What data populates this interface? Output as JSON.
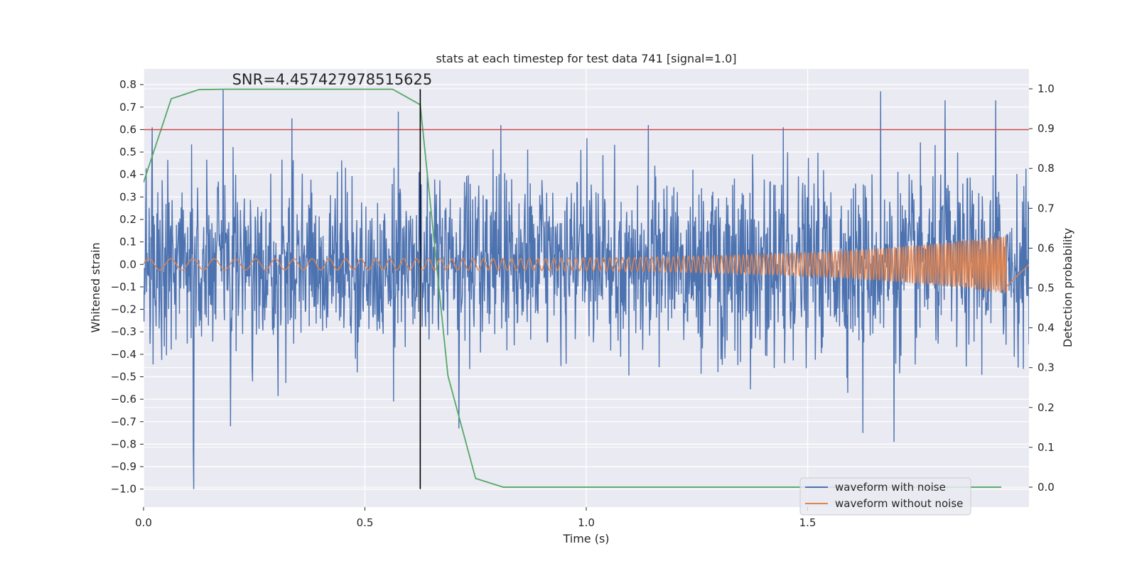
{
  "chart_data": {
    "type": "line",
    "title": "stats at each timestep for test data 741 [signal=1.0]",
    "xlabel": "Time (s)",
    "ylabel": "Whitened strain",
    "y2label": "Detection probability",
    "xlim": [
      0.0,
      2.0
    ],
    "ylim": [
      -1.08,
      0.87
    ],
    "y2lim": [
      -0.05,
      1.05
    ],
    "x_ticks": [
      0.0,
      0.5,
      1.0,
      1.5
    ],
    "x_tick_labels": [
      "0.0",
      "0.5",
      "1.0",
      "1.5"
    ],
    "y_ticks": [
      0.8,
      0.7,
      0.6,
      0.5,
      0.4,
      0.3,
      0.2,
      0.1,
      0.0,
      -0.1,
      -0.2,
      -0.3,
      -0.4,
      -0.5,
      -0.6,
      -0.7,
      -0.8,
      -0.9,
      -1.0
    ],
    "y_tick_labels": [
      "0.8",
      "0.7",
      "0.6",
      "0.5",
      "0.4",
      "0.3",
      "0.2",
      "0.1",
      "0.0",
      "−0.1",
      "−0.2",
      "−0.3",
      "−0.4",
      "−0.5",
      "−0.6",
      "−0.7",
      "−0.8",
      "−0.9",
      "−1.0"
    ],
    "y2_ticks": [
      1.0,
      0.9,
      0.8,
      0.7,
      0.6,
      0.5,
      0.4,
      0.3,
      0.2,
      0.1,
      0.0
    ],
    "y2_tick_labels": [
      "1.0",
      "0.9",
      "0.8",
      "0.7",
      "0.6",
      "0.5",
      "0.4",
      "0.3",
      "0.2",
      "0.1",
      "0.0"
    ],
    "grid": true,
    "legend_position": "lower-right",
    "annotation": "SNR=4.457427978515625",
    "annotation_anchor": [
      0.2,
      0.8
    ],
    "threshold_y": 0.6,
    "marker_x": 0.625,
    "marker_ymax": 0.78,
    "series": [
      {
        "name": "waveform with noise",
        "color": "#4c72b0",
        "kind": "noise",
        "x_range": [
          0.0,
          2.0
        ],
        "samples": 2048,
        "spikes": [
          {
            "x": 0.113,
            "y": -1.0
          },
          {
            "x": 0.18,
            "y": 0.78
          },
          {
            "x": 0.196,
            "y": -0.72
          },
          {
            "x": 0.02,
            "y": 0.61
          },
          {
            "x": 0.335,
            "y": 0.65
          },
          {
            "x": 0.575,
            "y": 0.68
          },
          {
            "x": 0.807,
            "y": 0.62
          },
          {
            "x": 1.14,
            "y": 0.62
          },
          {
            "x": 1.445,
            "y": 0.61
          },
          {
            "x": 1.625,
            "y": -0.75
          },
          {
            "x": 1.665,
            "y": 0.77
          },
          {
            "x": 1.695,
            "y": -0.79
          },
          {
            "x": 1.81,
            "y": 0.73
          },
          {
            "x": 1.925,
            "y": 0.73
          },
          {
            "x": 0.112,
            "y": -0.82
          },
          {
            "x": 0.565,
            "y": -0.61
          },
          {
            "x": 0.712,
            "y": -0.73
          }
        ]
      },
      {
        "name": "waveform without noise",
        "color": "#dd8452",
        "kind": "chirp",
        "x_range": [
          0.0,
          1.95
        ],
        "samples": 2600,
        "amplitude_start": 0.025,
        "amplitude_end": 0.13,
        "freq_start": 20,
        "freq_end": 210
      },
      {
        "name": "detection probability",
        "color": "#55a868",
        "axis": "y2",
        "x": [
          0.0,
          0.0625,
          0.125,
          0.1875,
          0.25,
          0.3125,
          0.375,
          0.4375,
          0.5,
          0.5625,
          0.625,
          0.6875,
          0.75,
          0.8125,
          0.875,
          0.9375,
          1.0,
          1.0625,
          1.125,
          1.1875,
          1.25,
          1.3125,
          1.375,
          1.4375,
          1.5,
          1.5625,
          1.625,
          1.6875,
          1.75,
          1.8125,
          1.875,
          1.9375
        ],
        "values": [
          0.765,
          0.975,
          0.998,
          0.999,
          0.999,
          0.999,
          0.999,
          0.999,
          0.999,
          0.999,
          0.96,
          0.28,
          0.022,
          0.0,
          0.0,
          0.0,
          0.0,
          0.0,
          0.0,
          0.0,
          0.0,
          0.0,
          0.0,
          0.0,
          0.0,
          0.0,
          0.0,
          0.0,
          0.0,
          0.0,
          0.0,
          0.0
        ]
      },
      {
        "name": "threshold",
        "color": "#c44e52",
        "kind": "hline"
      },
      {
        "name": "marker",
        "color": "#000000",
        "kind": "vline"
      }
    ]
  }
}
